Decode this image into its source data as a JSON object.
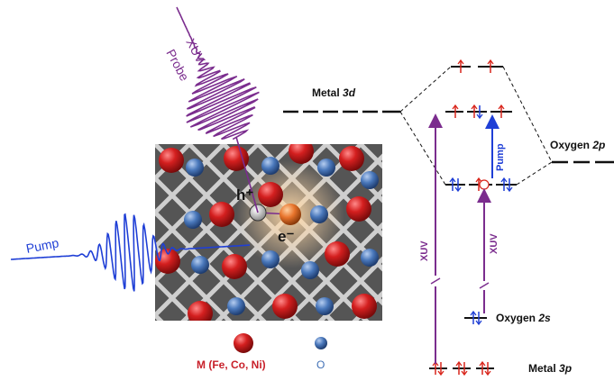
{
  "labels": {
    "xuv_probe_1": "XUV",
    "xuv_probe_2": "Probe",
    "pump_left": "Pump",
    "metal_3d": [
      "Metal ",
      "3d"
    ],
    "oxygen_2p": [
      "Oxygen ",
      "2p"
    ],
    "oxygen_2s": [
      "Oxygen ",
      "2s"
    ],
    "metal_3p": [
      "Metal ",
      "3p"
    ],
    "hole": "h⁺",
    "electron": "e⁻",
    "xuv_left_arrow": "XUV",
    "xuv_right_arrow": "XUV",
    "pump_arrow": "Pump",
    "legend_metal": "M (Fe, Co, Ni)",
    "legend_oxygen": "O"
  },
  "colors": {
    "xuv": "#7b2d8e",
    "pump": "#1f3fd6",
    "electron": "#d9261c",
    "hole_up": "#1f3fd6",
    "metal_atom": "#cc1a1a",
    "oxygen_atom": "#3f6fb5",
    "bond": "#c8c8c8",
    "crystal_bg": "#5a5a5a",
    "excited": "#e8742c",
    "legend_metal_text": "#c8202a",
    "legend_oxygen_text": "#3f6fb5"
  }
}
